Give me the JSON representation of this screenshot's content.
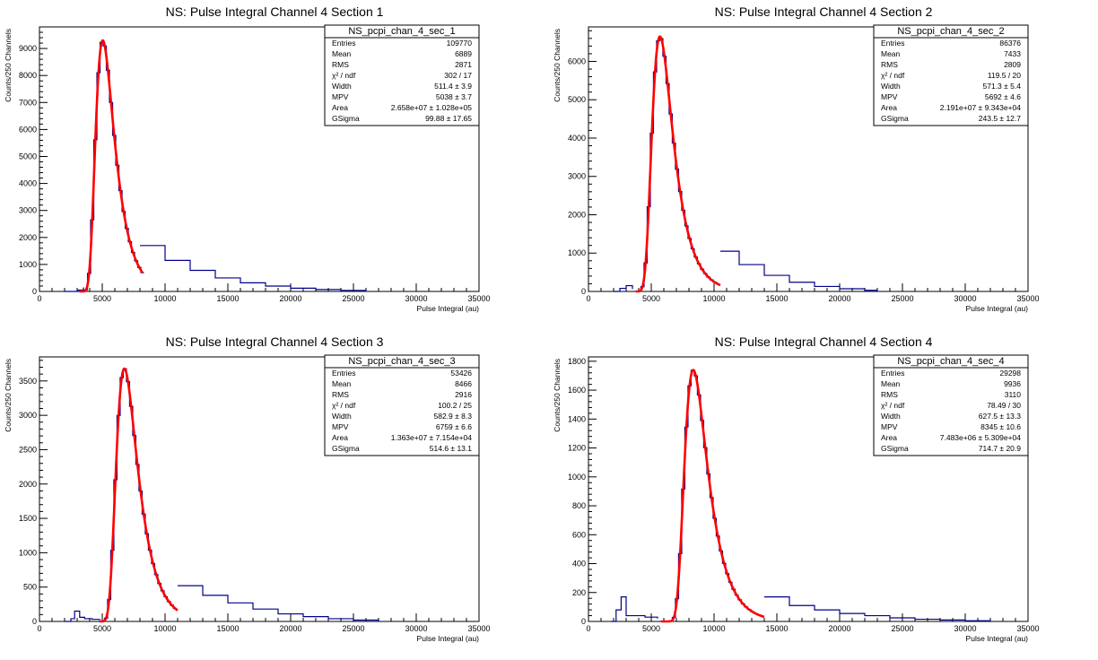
{
  "colors": {
    "histogram": "#00008b",
    "fit": "#ff0000",
    "axis": "#000000",
    "background": "#ffffff"
  },
  "chart_data": [
    {
      "type": "line",
      "title": "NS: Pulse Integral Channel 4 Section 1",
      "xlabel": "Pulse Integral (au)",
      "ylabel": "Counts/250 Channels",
      "xlim": [
        0,
        35000
      ],
      "ylim": [
        0,
        9800
      ],
      "xticks": [
        0,
        5000,
        10000,
        15000,
        20000,
        25000,
        30000,
        35000
      ],
      "yticks": [
        0,
        1000,
        2000,
        3000,
        4000,
        5000,
        6000,
        7000,
        8000,
        9000
      ],
      "grid": false,
      "legend": "top-right",
      "landau": {
        "amp": 9300,
        "mpv": 5038,
        "width": 511.4,
        "fit_range": [
          3200,
          8200
        ]
      },
      "histogram_segments": [
        {
          "x": [
            2000,
            3000
          ],
          "y": [
            0,
            50
          ]
        },
        {
          "x": [
            3000,
            3500
          ],
          "y": [
            50,
            150
          ]
        },
        {
          "x": [
            8000,
            10000,
            12000,
            14000,
            16000,
            18000,
            20000,
            22000,
            24000,
            26000
          ],
          "y": [
            1700,
            1150,
            780,
            500,
            320,
            200,
            120,
            70,
            40,
            0
          ]
        }
      ],
      "stats": {
        "name": "NS_pcpi_chan_4_sec_1",
        "rows": [
          {
            "key": "Entries",
            "value": "109770"
          },
          {
            "key": "Mean",
            "value": "6889"
          },
          {
            "key": "RMS",
            "value": "2871"
          },
          {
            "key": "χ² / ndf",
            "value": "302 / 17"
          },
          {
            "key": "Width",
            "value": "511.4 ± 3.9"
          },
          {
            "key": "MPV",
            "value": "5038 ± 3.7"
          },
          {
            "key": "Area",
            "value": "2.658e+07 ± 1.028e+05"
          },
          {
            "key": "GSigma",
            "value": "99.88 ± 17.65"
          }
        ]
      }
    },
    {
      "type": "line",
      "title": "NS: Pulse Integral Channel 4 Section 2",
      "xlabel": "Pulse Integral (au)",
      "ylabel": "Counts/250 Channels",
      "xlim": [
        0,
        35000
      ],
      "ylim": [
        0,
        6900
      ],
      "xticks": [
        0,
        5000,
        10000,
        15000,
        20000,
        25000,
        30000,
        35000
      ],
      "yticks": [
        0,
        1000,
        2000,
        3000,
        4000,
        5000,
        6000
      ],
      "grid": false,
      "legend": "top-right",
      "landau": {
        "amp": 6650,
        "mpv": 5692,
        "width": 571.3,
        "fit_range": [
          3800,
          10500
        ]
      },
      "histogram_segments": [
        {
          "x": [
            2000,
            2500,
            3000,
            3500
          ],
          "y": [
            0,
            80,
            150,
            60
          ]
        },
        {
          "x": [
            10500,
            12000,
            14000,
            16000,
            18000,
            20000,
            22000,
            23000
          ],
          "y": [
            1050,
            700,
            420,
            240,
            130,
            70,
            30,
            0
          ]
        }
      ],
      "stats": {
        "name": "NS_pcpi_chan_4_sec_2",
        "rows": [
          {
            "key": "Entries",
            "value": "86376"
          },
          {
            "key": "Mean",
            "value": "7433"
          },
          {
            "key": "RMS",
            "value": "2809"
          },
          {
            "key": "χ² / ndf",
            "value": "119.5 / 20"
          },
          {
            "key": "Width",
            "value": "571.3 ± 5.4"
          },
          {
            "key": "MPV",
            "value": "5692 ± 4.6"
          },
          {
            "key": "Area",
            "value": "2.191e+07 ± 9.343e+04"
          },
          {
            "key": "GSigma",
            "value": "243.5 ± 12.7"
          }
        ]
      }
    },
    {
      "type": "line",
      "title": "NS: Pulse Integral Channel 4 Section 3",
      "xlabel": "Pulse Integral (au)",
      "ylabel": "Counts/250 Channels",
      "xlim": [
        0,
        35000
      ],
      "ylim": [
        0,
        3850
      ],
      "xticks": [
        0,
        5000,
        10000,
        15000,
        20000,
        25000,
        30000,
        35000
      ],
      "yticks": [
        0,
        500,
        1000,
        1500,
        2000,
        2500,
        3000,
        3500
      ],
      "grid": false,
      "legend": "top-right",
      "landau": {
        "amp": 3680,
        "mpv": 6759,
        "width": 582.9,
        "fit_range": [
          4800,
          11000
        ]
      },
      "histogram_segments": [
        {
          "x": [
            2000,
            2500,
            2800,
            3200,
            3600,
            4200,
            4800
          ],
          "y": [
            0,
            40,
            150,
            60,
            40,
            30,
            20
          ]
        },
        {
          "x": [
            11000,
            13000,
            15000,
            17000,
            19000,
            21000,
            23000,
            25000,
            27000
          ],
          "y": [
            520,
            380,
            270,
            180,
            110,
            70,
            40,
            20,
            0
          ]
        }
      ],
      "stats": {
        "name": "NS_pcpi_chan_4_sec_3",
        "rows": [
          {
            "key": "Entries",
            "value": "53426"
          },
          {
            "key": "Mean",
            "value": "8466"
          },
          {
            "key": "RMS",
            "value": "2916"
          },
          {
            "key": "χ² / ndf",
            "value": "100.2 / 25"
          },
          {
            "key": "Width",
            "value": "582.9 ± 8.3"
          },
          {
            "key": "MPV",
            "value": "6759 ± 6.6"
          },
          {
            "key": "Area",
            "value": "1.363e+07 ± 7.154e+04"
          },
          {
            "key": "GSigma",
            "value": "514.6 ± 13.1"
          }
        ]
      }
    },
    {
      "type": "line",
      "title": "NS: Pulse Integral Channel 4 Section 4",
      "xlabel": "Pulse Integral (au)",
      "ylabel": "Counts/250 Channels",
      "xlim": [
        0,
        35000
      ],
      "ylim": [
        0,
        1830
      ],
      "xticks": [
        0,
        5000,
        10000,
        15000,
        20000,
        25000,
        30000,
        35000
      ],
      "yticks": [
        0,
        200,
        400,
        600,
        800,
        1000,
        1200,
        1400,
        1600,
        1800
      ],
      "grid": false,
      "legend": "top-right",
      "landau": {
        "amp": 1740,
        "mpv": 8345,
        "width": 627.5,
        "fit_range": [
          5800,
          14000
        ]
      },
      "histogram_segments": [
        {
          "x": [
            1800,
            2200,
            2600,
            3000,
            3500,
            4500,
            5500
          ],
          "y": [
            0,
            80,
            170,
            40,
            40,
            30,
            20
          ]
        },
        {
          "x": [
            14000,
            16000,
            18000,
            20000,
            22000,
            24000,
            26000,
            28000,
            30000,
            32000
          ],
          "y": [
            170,
            110,
            80,
            55,
            40,
            25,
            15,
            10,
            5,
            0
          ]
        }
      ],
      "stats": {
        "name": "NS_pcpi_chan_4_sec_4",
        "rows": [
          {
            "key": "Entries",
            "value": "29298"
          },
          {
            "key": "Mean",
            "value": "9936"
          },
          {
            "key": "RMS",
            "value": "3110"
          },
          {
            "key": "χ² / ndf",
            "value": "78.49 / 30"
          },
          {
            "key": "Width",
            "value": "627.5 ± 13.3"
          },
          {
            "key": "MPV",
            "value": "8345 ± 10.6"
          },
          {
            "key": "Area",
            "value": "7.483e+06 ± 5.309e+04"
          },
          {
            "key": "GSigma",
            "value": "714.7 ± 20.9"
          }
        ]
      }
    }
  ]
}
